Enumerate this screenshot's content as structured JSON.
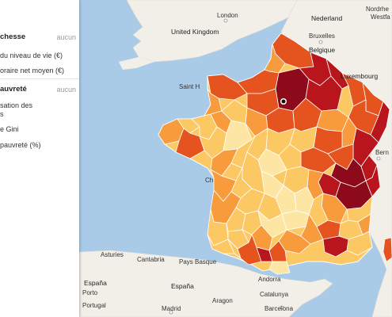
{
  "panel": {
    "richesse": {
      "title": "chesse",
      "toggle": "aucun"
    },
    "richesse_items": [
      "du niveau de vie (€)",
      "oraire net moyen (€)"
    ],
    "pauvrete": {
      "title": "auvreté",
      "toggle": "aucun"
    },
    "pauvrete_items": [
      "sation des",
      "s",
      "e Gini",
      "pauvreté (%)"
    ]
  },
  "map_labels": {
    "london": "London",
    "uk": "United Kingdom",
    "nederland": "Nederland",
    "nordrhein": "Nordrhe",
    "westfa": "Westfa",
    "bruxelles": "Bruxelles",
    "belgique": "Belgique",
    "luxembourg": "Luxembourg",
    "saint_helier": "Saint H",
    "bern": "Bern",
    "asturies": "Asturies",
    "cantabria": "Cantabria",
    "pays_basque": "Pays Basque",
    "espana": "España",
    "espana2": "España",
    "aragon": "Aragon",
    "catalunya": "Catalunya",
    "portugal": "Portugal",
    "barcelona": "Barcelona",
    "porto": "Porto",
    "madrid": "Madrid",
    "andorra": "Andorra",
    "ch": "Ch"
  },
  "colors": {
    "sea": "#a9cbe8",
    "land": "#f2efe9",
    "class1": "#fde6a4",
    "class2": "#fbc864",
    "class3": "#f89b3c",
    "class4": "#e5531f",
    "class5": "#b8151c",
    "class6": "#8c0a1a"
  }
}
